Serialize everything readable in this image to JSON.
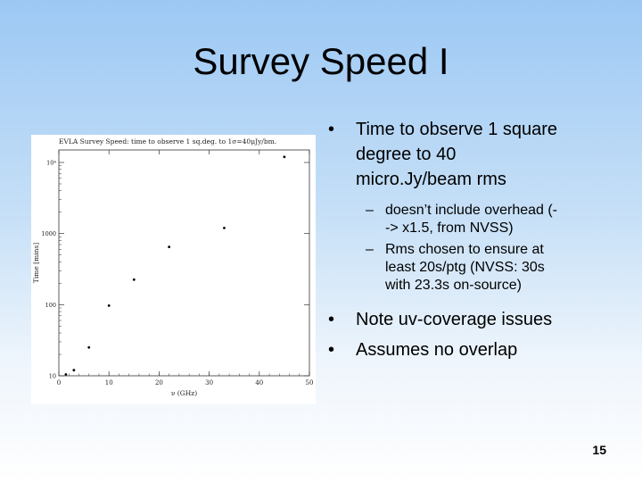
{
  "slide": {
    "title": "Survey Speed I",
    "page_number": "15",
    "bullet_symbol": "•",
    "dash_symbol": "–",
    "bullets_top": [
      {
        "text": "Time to observe 1 square degree to 40 micro.Jy/beam rms",
        "lines": [
          "Time to observe 1 square",
          "degree to 40",
          "micro.Jy/beam rms"
        ],
        "sub": [
          {
            "lines": [
              "doesn’t include overhead  (-",
              "-> x1.5, from NVSS)"
            ]
          },
          {
            "lines": [
              "Rms chosen to ensure at",
              "least 20s/ptg (NVSS: 30s",
              "with 23.3s on-source)"
            ]
          }
        ]
      }
    ],
    "bullets_bottom": [
      "Note uv-coverage issues",
      "Assumes no overlap"
    ]
  },
  "chart_data": {
    "type": "scatter",
    "title": "EVLA Survey Speed: time to observe 1 sq.deg. to 1σ=40μJy/bm.",
    "xlabel": "ν (GHz)",
    "ylabel": "Time [mins]",
    "xlim": [
      0,
      50
    ],
    "ylim": [
      10,
      15000
    ],
    "yscale": "log",
    "x_ticks": [
      "0",
      "10",
      "20",
      "30",
      "40",
      "50"
    ],
    "y_ticks": [
      "10",
      "100",
      "1000",
      "10⁴"
    ],
    "x": [
      1.4,
      3,
      6,
      10,
      15,
      22,
      33,
      45
    ],
    "y": [
      8,
      12,
      25,
      97,
      225,
      650,
      1200,
      12000
    ],
    "marker_color": "#000000",
    "grid": false
  }
}
